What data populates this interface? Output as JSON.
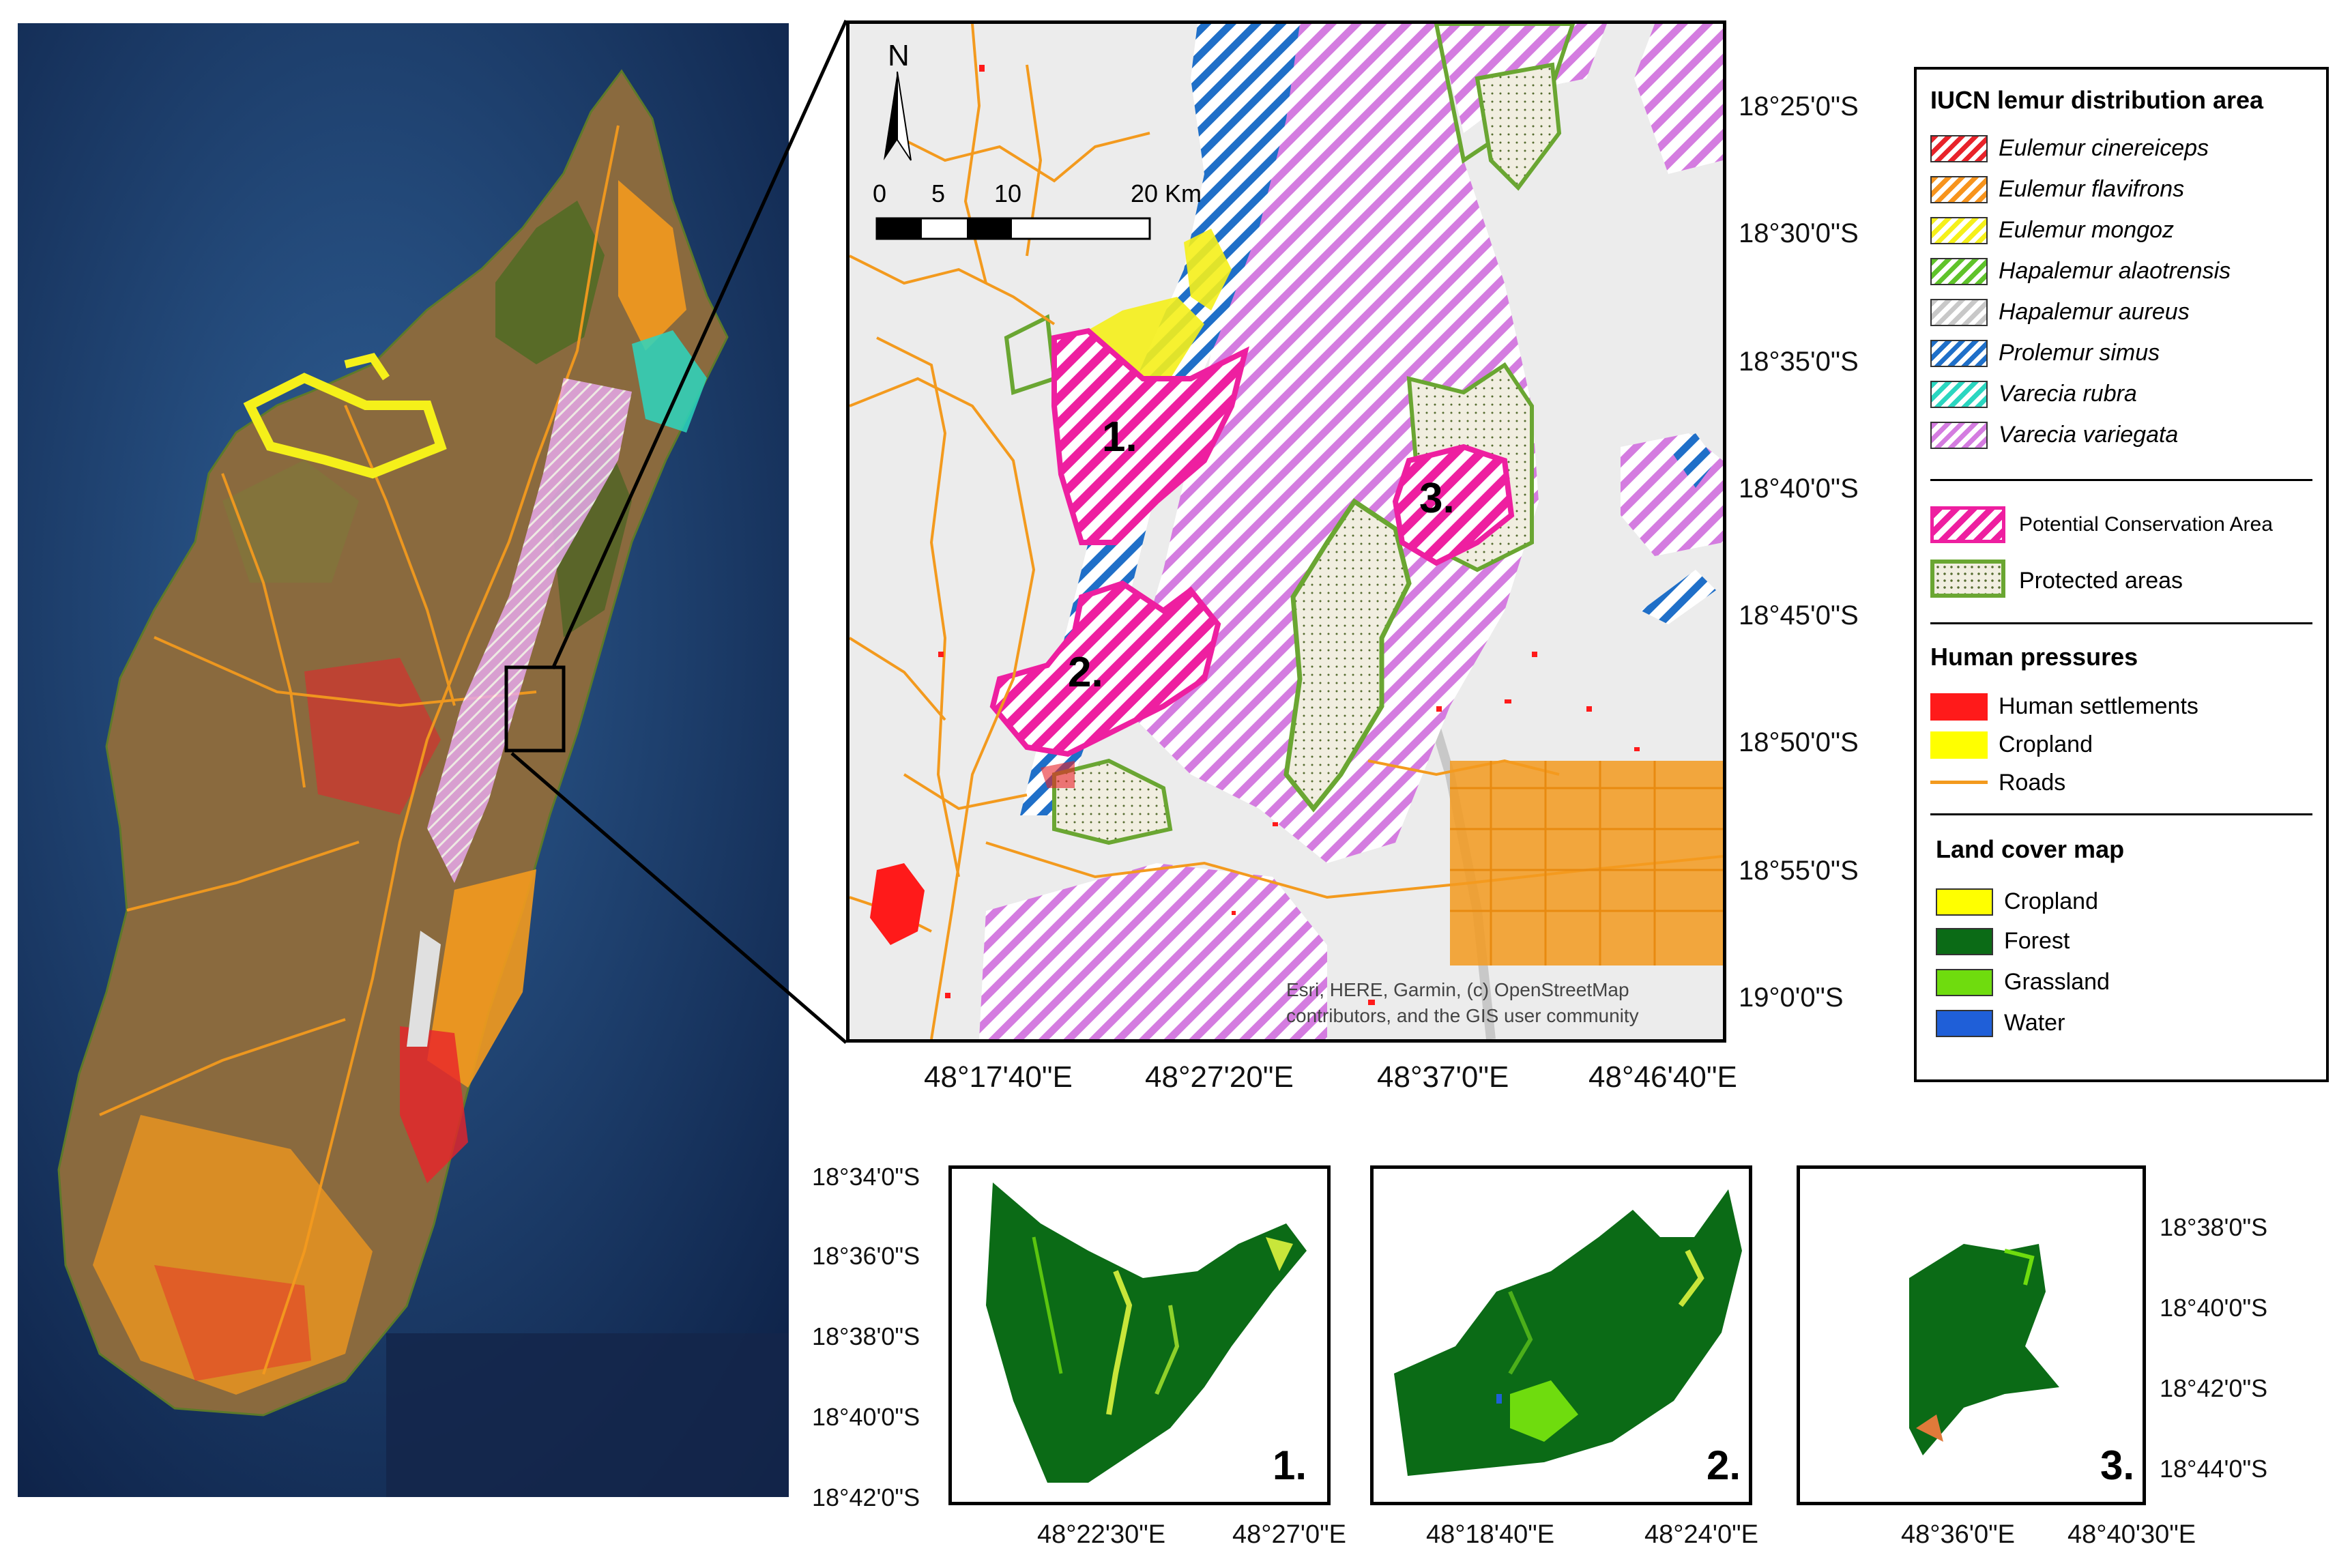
{
  "main_map": {
    "lat_labels": [
      "18°25'0\"S",
      "18°30'0\"S",
      "18°35'0\"S",
      "18°40'0\"S",
      "18°45'0\"S",
      "18°50'0\"S",
      "18°55'0\"S",
      "19°0'0\"S"
    ],
    "lon_labels": [
      "48°17'40\"E",
      "48°27'20\"E",
      "48°37'0\"E",
      "48°46'40\"E"
    ],
    "north_label": "N",
    "scale_ticks": [
      "0",
      "5",
      "10",
      "20 Km"
    ],
    "area_labels": [
      "1.",
      "2.",
      "3."
    ],
    "credit_line1": "Esri, HERE, Garmin, (c) OpenStreetMap",
    "credit_line2": "contributors, and the GIS user community"
  },
  "legend": {
    "iucn_title": "IUCN lemur distribution area",
    "species": [
      {
        "name": "Eulemur cinereiceps",
        "color": "#e8232a"
      },
      {
        "name": "Eulemur flavifrons",
        "color": "#f7941d"
      },
      {
        "name": "Eulemur mongoz",
        "color": "#f5f01a"
      },
      {
        "name": "Hapalemur alaotrensis",
        "color": "#5fc32a"
      },
      {
        "name": "Hapalemur aureus",
        "color": "#c8c8c8"
      },
      {
        "name": "Prolemur simus",
        "color": "#1f6fc8"
      },
      {
        "name": "Varecia rubra",
        "color": "#2bd6c0"
      },
      {
        "name": "Varecia variegata",
        "color": "#d47ce0"
      }
    ],
    "pca_label": "Potential Conservation Area",
    "pca_color": "#ee1fa0",
    "protected_label": "Protected areas",
    "protected_color": "#6aa632",
    "pressures_title": "Human pressures",
    "pressures": [
      {
        "name": "Human settlements",
        "color": "#ff1a1a"
      },
      {
        "name": "Cropland",
        "color": "#ffff00"
      },
      {
        "name": "Roads",
        "color": "#f39a1e"
      }
    ],
    "landcover_title": "Land cover map",
    "landcover": [
      {
        "name": "Cropland",
        "color": "#ffff00"
      },
      {
        "name": "Forest",
        "color": "#0b6b16"
      },
      {
        "name": "Grassland",
        "color": "#6fdc0e"
      },
      {
        "name": "Water",
        "color": "#1f5fd8"
      }
    ]
  },
  "insets": {
    "left_lat_labels": [
      "18°34'0\"S",
      "18°36'0\"S",
      "18°38'0\"S",
      "18°40'0\"S",
      "18°42'0\"S"
    ],
    "right_lat_labels": [
      "18°38'0\"S",
      "18°40'0\"S",
      "18°42'0\"S",
      "18°44'0\"S"
    ],
    "panel1_lon": [
      "48°22'30\"E",
      "48°27'0\"E"
    ],
    "panel2_lon": [
      "48°18'40\"E",
      "48°24'0\"E"
    ],
    "panel3_lon": [
      "48°36'0\"E",
      "48°40'30\"E"
    ],
    "numbers": [
      "1.",
      "2.",
      "3."
    ]
  }
}
